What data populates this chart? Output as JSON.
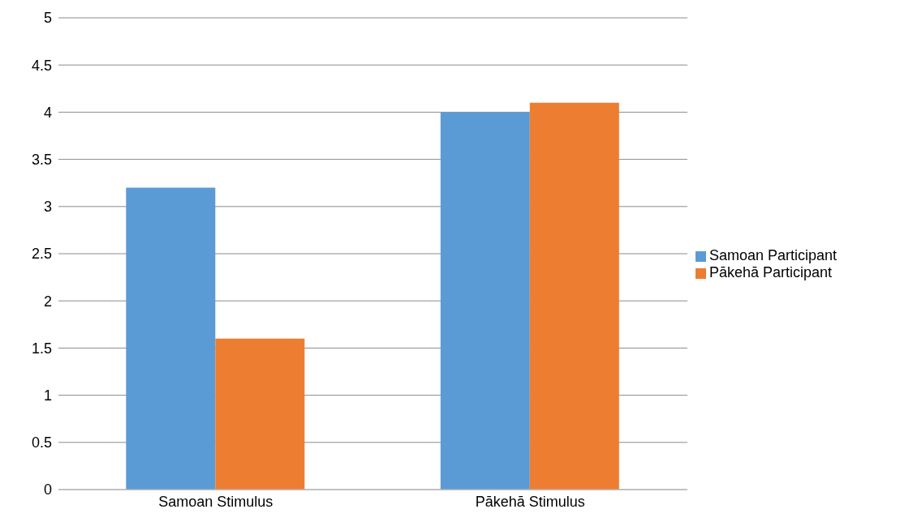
{
  "chart_data": {
    "type": "bar",
    "categories": [
      "Samoan Stimulus",
      "Pākehā Stimulus"
    ],
    "series": [
      {
        "name": "Samoan Participant",
        "color": "#5b9bd5",
        "values": [
          3.2,
          4.0
        ]
      },
      {
        "name": "Pākehā Participant",
        "color": "#ed7d31",
        "values": [
          1.6,
          4.1
        ]
      }
    ],
    "ylim": [
      0,
      5
    ],
    "yticks": [
      0,
      0.5,
      1,
      1.5,
      2,
      2.5,
      3,
      3.5,
      4,
      4.5,
      5
    ],
    "grid": "y",
    "legend": "right"
  }
}
